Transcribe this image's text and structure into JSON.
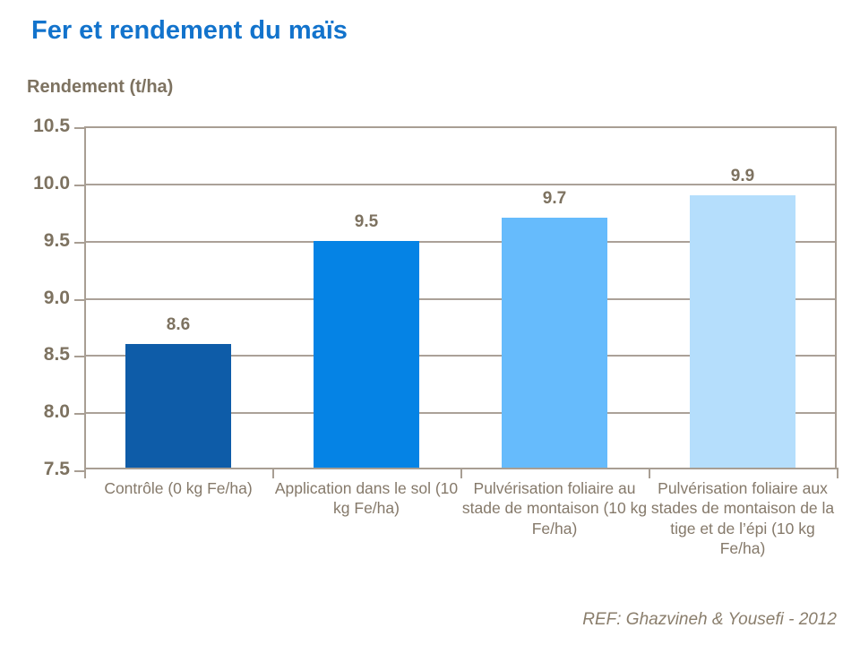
{
  "title": "Fer et rendement du maïs",
  "axis_title": "Rendement (t/ha)",
  "footer_ref": "REF: Ghazvineh & Yousefi - 2012",
  "colors": {
    "title_text": "#1273CC",
    "axis_text": "#7D7260",
    "category_text": "#85796A",
    "ref_text": "#8A7E6C",
    "axis_line": "#A89E93",
    "gridline": "#ABA198",
    "bars": [
      "#0E5CA8",
      "#0583E5",
      "#66BBFC",
      "#B5DEFC"
    ]
  },
  "chart_data": {
    "type": "bar",
    "title": "Fer et rendement du maïs",
    "ylabel": "Rendement (t/ha)",
    "xlabel": "",
    "categories": [
      "Contrôle (0 kg Fe/ha)",
      "Application dans le sol (10 kg Fe/ha)",
      "Pulvérisation foliaire au stade de montaison (10 kg Fe/ha)",
      "Pulvérisation foliaire aux stades de montaison de la tige et de l’épi (10 kg Fe/ha)"
    ],
    "values": [
      8.6,
      9.5,
      9.7,
      9.9
    ],
    "value_labels": [
      "8.6",
      "9.5",
      "9.7",
      "9.9"
    ],
    "ylim": [
      7.5,
      10.5
    ],
    "ytick_step": 0.5,
    "yticks": [
      "10.5",
      "10.0",
      "9.5",
      "9.0",
      "8.5",
      "8.0",
      "7.5"
    ],
    "grid": true,
    "legend": false,
    "annotation": "REF: Ghazvineh & Yousefi - 2012"
  }
}
